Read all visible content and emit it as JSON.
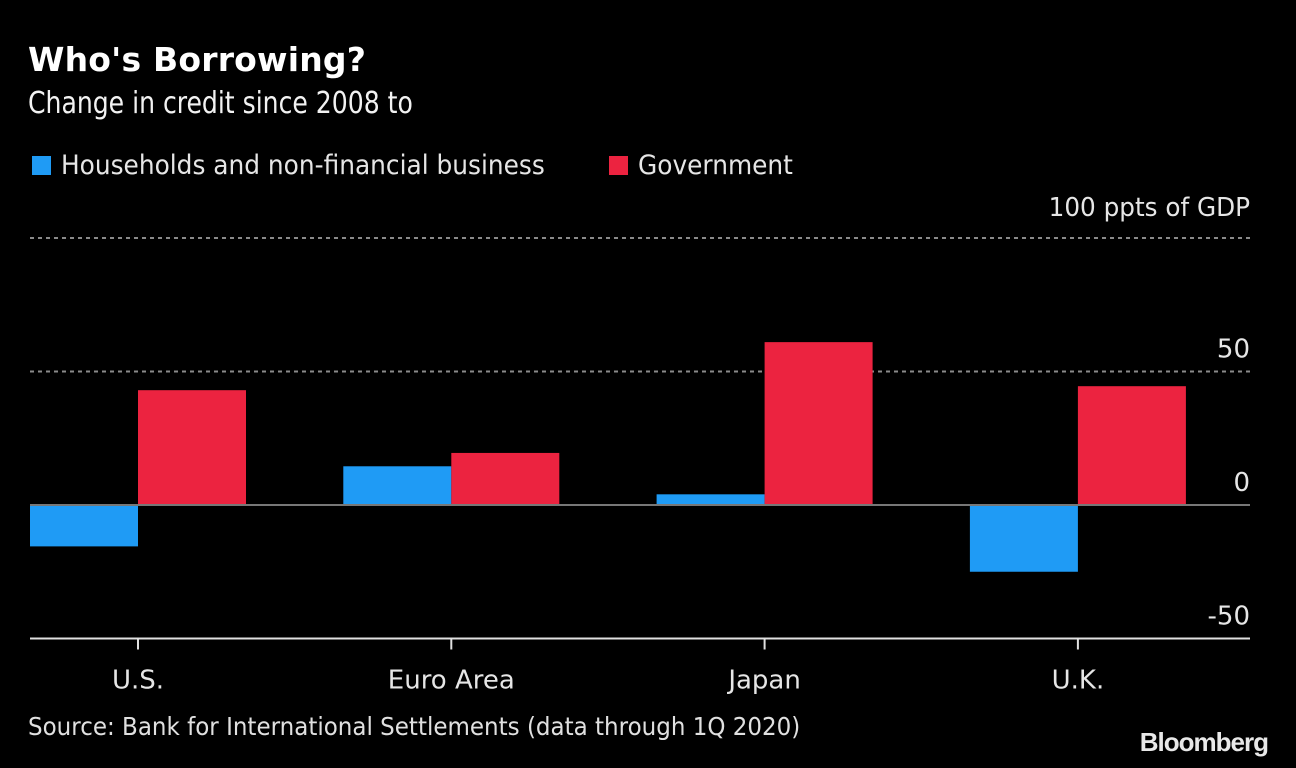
{
  "header": {
    "title": "Who's Borrowing?",
    "subtitle": "Change in credit since 2008 to"
  },
  "legend": [
    {
      "label": "Households and non-financial business",
      "color": "#1f9bf5"
    },
    {
      "label": "Government",
      "color": "#ec2340"
    }
  ],
  "footer": {
    "source": "Source: Bank for International Settlements (data through 1Q 2020)",
    "logo": "Bloomberg"
  },
  "chart_data": {
    "type": "bar",
    "title": "Who's Borrowing?",
    "subtitle": "Change in credit since 2008 to",
    "xlabel": "",
    "ylabel": "ppts of GDP",
    "unit_label": "100 ppts of GDP",
    "categories": [
      "U.S.",
      "Euro Area",
      "Japan",
      "U.K."
    ],
    "series": [
      {
        "name": "Households and non-financial business",
        "color": "#1f9bf5",
        "values": [
          -15.5,
          14.5,
          4,
          -25
        ]
      },
      {
        "name": "Government",
        "color": "#ec2340",
        "values": [
          43,
          19.5,
          61,
          44.5
        ]
      }
    ],
    "ylim": [
      -50,
      100
    ],
    "yticks": [
      {
        "value": 100,
        "label": "100 ppts of GDP"
      },
      {
        "value": 50,
        "label": "50"
      },
      {
        "value": 0,
        "label": "0"
      },
      {
        "value": -50,
        "label": "-50"
      }
    ],
    "grid": true,
    "legend_position": "top-left"
  }
}
